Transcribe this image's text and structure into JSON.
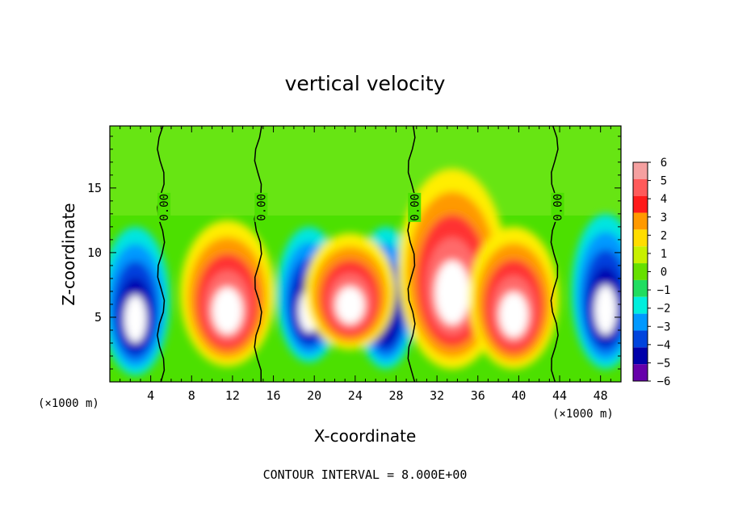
{
  "chart_data": {
    "type": "heatmap",
    "title": "vertical velocity",
    "xlabel": "X-coordinate",
    "ylabel": "Z-coordinate",
    "x_unit": "(×1000 m)",
    "xlim": [
      0,
      50
    ],
    "ylim": [
      0,
      19.8
    ],
    "xticks": [
      4,
      8,
      12,
      16,
      20,
      24,
      28,
      32,
      36,
      40,
      44,
      48
    ],
    "yticks": [
      5,
      10,
      15
    ],
    "colorbar": {
      "levels": [
        6,
        5,
        4,
        3,
        2,
        1,
        0,
        -1,
        -2,
        -3,
        -4,
        -5,
        -6
      ],
      "colors": [
        "#f5a0a0",
        "#ff5a5a",
        "#ff1a1a",
        "#ff9900",
        "#ffdd00",
        "#c8f000",
        "#66e000",
        "#20dd60",
        "#00eedd",
        "#0099ff",
        "#0044dd",
        "#0000aa",
        "#6600aa"
      ]
    },
    "zero_contour_label": "0.00",
    "note": "CONTOUR INTERVAL = 8.000E+00",
    "updrafts": [
      {
        "x": 11.5,
        "z_base": 1.2,
        "z_top": 12.5,
        "peak": 14
      },
      {
        "x": 23.5,
        "z_base": 2.5,
        "z_top": 11.5,
        "peak": 12
      },
      {
        "x": 33.5,
        "z_base": 1.0,
        "z_top": 16.5,
        "peak": 20
      },
      {
        "x": 39.5,
        "z_base": 1.0,
        "z_top": 12.0,
        "peak": 12
      }
    ],
    "downdrafts": [
      {
        "x": 2.5,
        "z_base": 0.5,
        "z_top": 12.0,
        "peak": -14
      },
      {
        "x": 19.5,
        "z_base": 1.5,
        "z_top": 12.0,
        "peak": -12
      },
      {
        "x": 27.0,
        "z_base": 1.0,
        "z_top": 12.0,
        "peak": -10
      },
      {
        "x": 48.5,
        "z_base": 1.0,
        "z_top": 13.0,
        "peak": -14
      }
    ],
    "zero_contour_x": [
      5.0,
      14.5,
      29.5,
      43.5
    ]
  }
}
